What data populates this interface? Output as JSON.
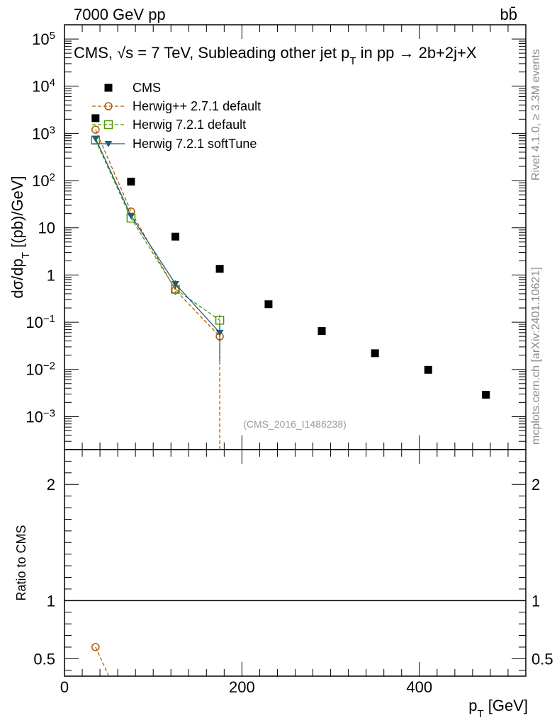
{
  "header": {
    "left": "7000 GeV pp",
    "right": "bb̄"
  },
  "side_labels": {
    "rivet": "Rivet 4.1.0, ≥ 3.3M events",
    "mcplots": "mcplots.cern.ch [arXiv:2401.10621]"
  },
  "analysis_id": "(CMS_2016_I1486238)",
  "colors": {
    "cms": "#000000",
    "herwigpp": "#b35900",
    "herwig_default": "#4c9900",
    "herwig_softtune": "#1f5c7a"
  },
  "chart_data": [
    {
      "type": "scatter",
      "title": "CMS, √s = 7 TeV, Subleading other jet p_T in pp → 2b+2j+X",
      "title_parts": {
        "prefix": "CMS, √s = 7 TeV, Subleading other jet p",
        "sub": "T",
        "suffix": " in pp → 2b+2j+X"
      },
      "ylabel": "dσ/dp_T [(pb)/GeV]",
      "ylabel_parts": {
        "main": "dσ/dp",
        "sub": "T",
        "tail": " [(pb)/GeV]"
      },
      "xlabel": "",
      "yscale": "log",
      "ylim": [
        0.0002,
        200000
      ],
      "xlim": [
        0,
        520
      ],
      "ytick_labels": [
        "10^5",
        "10^4",
        "10^3",
        "10^2",
        "10",
        "1",
        "10^-1",
        "10^-2",
        "10^-3"
      ],
      "legend_position": "top-left",
      "series": [
        {
          "name": "CMS",
          "style": "filled-square",
          "x": [
            35,
            75,
            125,
            175,
            230,
            290,
            350,
            410,
            475
          ],
          "y": [
            2100,
            95,
            6.5,
            1.35,
            0.24,
            0.065,
            0.022,
            0.0098,
            0.0029
          ]
        },
        {
          "name": "Herwig++ 2.7.1 default",
          "style": "open-circle-dashed",
          "x": [
            35,
            75,
            125,
            175
          ],
          "y": [
            1200,
            22,
            0.48,
            0.05
          ],
          "yerr_low": [
            0,
            0,
            0.1,
            0.05
          ],
          "yerr_high": [
            0,
            0,
            0.08,
            0.02
          ]
        },
        {
          "name": "Herwig 7.2.1 default",
          "style": "open-square-dashed",
          "x": [
            35,
            75,
            125,
            175
          ],
          "y": [
            720,
            16,
            0.5,
            0.11
          ],
          "yerr_low": [
            0,
            0,
            0.12,
            0.04
          ],
          "yerr_high": [
            0,
            0,
            0.08,
            0.05
          ]
        },
        {
          "name": "Herwig 7.2.1 softTune",
          "style": "filled-triangle-solid",
          "x": [
            35,
            75,
            125,
            175
          ],
          "y": [
            780,
            18,
            0.65,
            0.06
          ],
          "yerr_low": [
            0,
            0,
            0.15,
            0.045
          ],
          "yerr_high": [
            0,
            0,
            0.12,
            0.03
          ]
        }
      ]
    },
    {
      "type": "line",
      "ylabel": "Ratio to CMS",
      "xlabel": "p_T [GeV]",
      "xlabel_parts": {
        "main": "p",
        "sub": "T",
        "tail": " [GeV]"
      },
      "ylim": [
        0.35,
        2.3
      ],
      "xlim": [
        0,
        520
      ],
      "ytick_labels": [
        "2",
        "1",
        "0.5"
      ],
      "xtick_labels": [
        "0",
        "200",
        "400"
      ],
      "series": [
        {
          "name": "Herwig++ 2.7.1 default",
          "x": [
            35,
            50
          ],
          "y": [
            0.6,
            0.35
          ]
        }
      ]
    }
  ]
}
